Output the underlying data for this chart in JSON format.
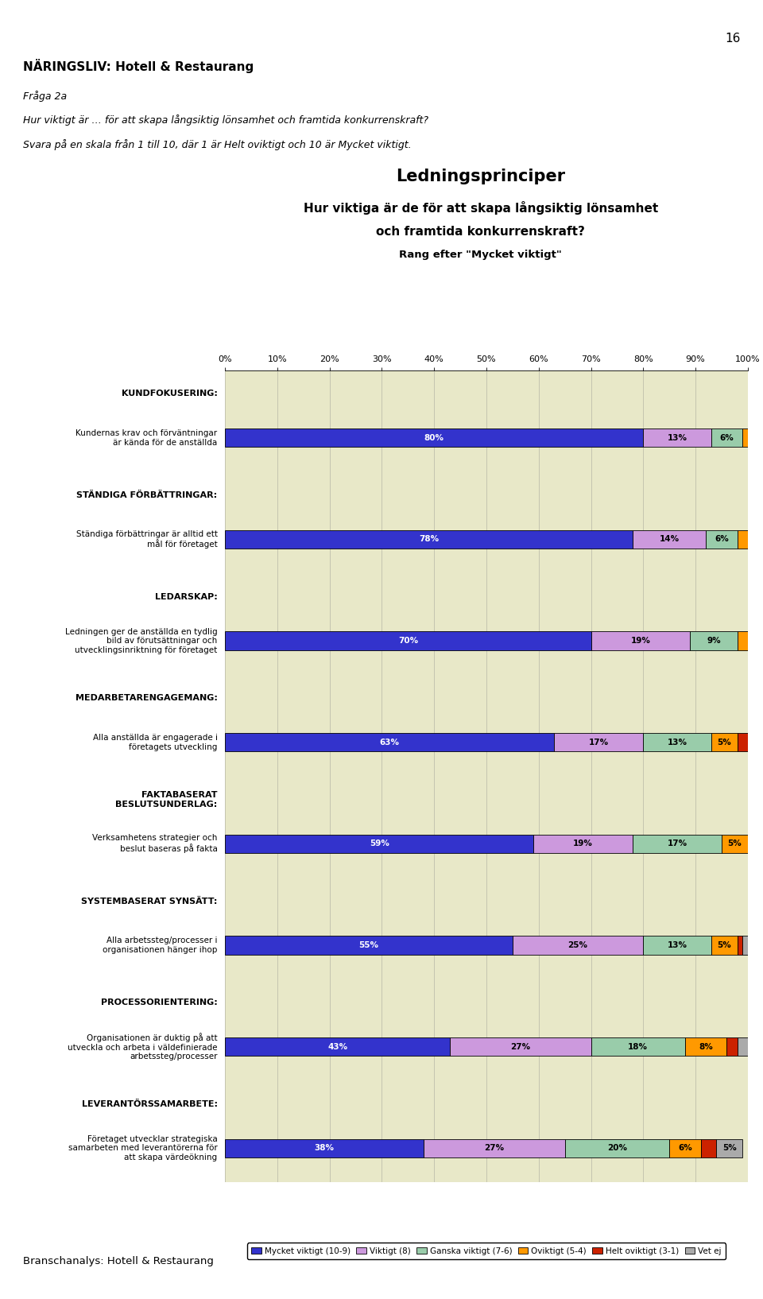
{
  "page_number": "16",
  "title_main": "Ledningsprinciper",
  "title_sub1": "Hur viktiga är de för att skapa långsiktig lönsamhet",
  "title_sub2": "och framtida konkurrenskraft?",
  "title_sub3": "Rang efter \"Mycket viktigt\"",
  "header_bold": "NÄRINGSLIV: Hotell & Restaurang",
  "header_italic1": "Fråga 2a",
  "header_italic2": "Hur viktigt är … för att skapa långsiktig lönsamhet och framtida konkurrenskraft?",
  "header_italic3": "Svara på en skala från 1 till 10, där 1 är Helt oviktigt och 10 är Mycket viktigt.",
  "footer": "Branschanalys: Hotell & Restaurang",
  "chart_bg": "#e8e8c8",
  "categories": [
    {
      "section": "KUNDFOKUSERING:",
      "label": "Kundernas krav och förväntningar\när kända för de anställda",
      "values": [
        80,
        13,
        6,
        1,
        0,
        0
      ]
    },
    {
      "section": "STÄNDIGA FÖRBÄTTRINGAR:",
      "label": "Ständiga förbättringar är alltid ett\nmål för företaget",
      "values": [
        78,
        14,
        6,
        2,
        0,
        0
      ]
    },
    {
      "section": "LEDARSKAP:",
      "label": "Ledningen ger de anställda en tydlig\nbild av förutsättningar och\nutvecklingsinriktning för företaget",
      "values": [
        70,
        19,
        9,
        2,
        0,
        0
      ]
    },
    {
      "section": "MEDARBETARENGAGEMANG:",
      "label": "Alla anställda är engagerade i\nföretagets utveckling",
      "values": [
        63,
        17,
        13,
        5,
        2,
        0
      ]
    },
    {
      "section": "FAKTABASERAT\nBESLUTSUNDERLAG:",
      "label": "Verksamhetens strategier och\nbeslut baseras på fakta",
      "values": [
        59,
        19,
        17,
        5,
        0,
        1
      ]
    },
    {
      "section": "SYSTEMBASERAT SYNSÄTT:",
      "label": "Alla arbetssteg/processer i\norganisationen hänger ihop",
      "values": [
        55,
        25,
        13,
        5,
        1,
        1
      ]
    },
    {
      "section": "PROCESSORIENTERING:",
      "label": "Organisationen är duktig på att\nutveckla och arbeta i väldefinierade\narbetssteg/processer",
      "values": [
        43,
        27,
        18,
        8,
        2,
        3
      ]
    },
    {
      "section": "LEVERANTÖRSSAMARBETE:",
      "label": "Företaget utvecklar strategiska\nsamarbeten med leverantörerna för\natt skapa värdeökning",
      "values": [
        38,
        27,
        20,
        6,
        3,
        5
      ]
    }
  ],
  "legend_labels": [
    "Mycket viktigt (10-9)",
    "Viktigt (8)",
    "Ganska viktigt (7-6)",
    "Oviktigt (5-4)",
    "Helt oviktigt (3-1)",
    "Vet ej"
  ],
  "colors": [
    "#3333cc",
    "#cc99dd",
    "#99ccaa",
    "#ff9900",
    "#cc2200",
    "#aaaaaa"
  ]
}
